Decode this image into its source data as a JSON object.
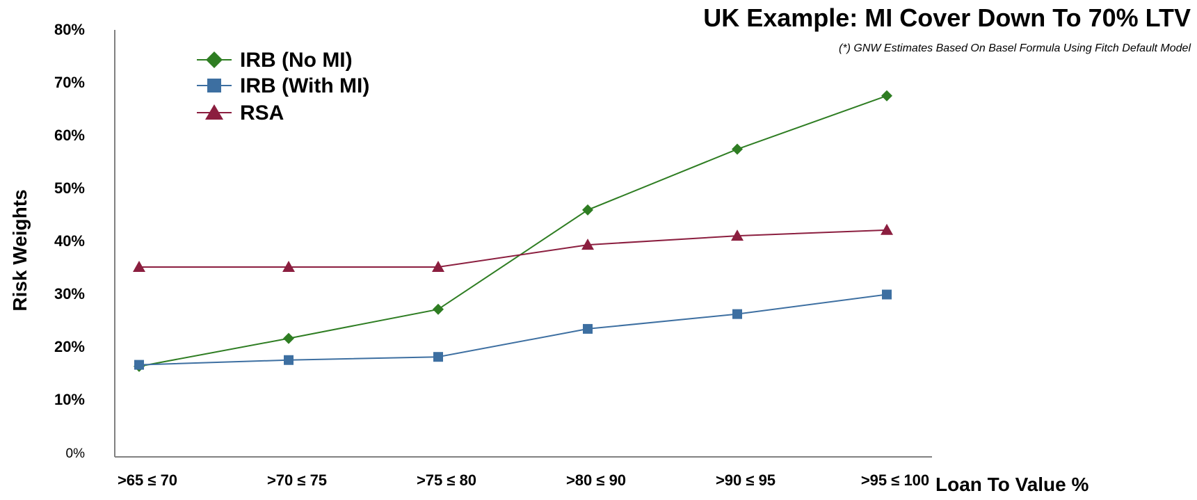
{
  "chart_data": {
    "type": "line",
    "title": "UK Example: MI Cover Down To 70% LTV",
    "subtitle": "(*) GNW Estimates Based On Basel Formula Using Fitch Default Model",
    "xlabel": "Loan To Value %",
    "ylabel": "Risk Weights",
    "categories": [
      ">65 ≤ 70",
      ">70 ≤ 75",
      ">75 ≤ 80",
      ">80 ≤ 90",
      ">90 ≤ 95",
      ">95 ≤ 100"
    ],
    "yticks": [
      "0%",
      "10%",
      "20%",
      "30%",
      "40%",
      "50%",
      "60%",
      "70%",
      "80%"
    ],
    "ylim": [
      0,
      80
    ],
    "grid": false,
    "legend_position": "top-left",
    "series": [
      {
        "name": "IRB (No MI)",
        "color": "#2e7d22",
        "marker": "diamond",
        "values": [
          16.2,
          21.5,
          27.0,
          45.8,
          57.3,
          67.4
        ]
      },
      {
        "name": "IRB (With MI)",
        "color": "#3d6fa1",
        "marker": "square",
        "values": [
          16.5,
          17.4,
          18.0,
          23.3,
          26.1,
          29.8
        ]
      },
      {
        "name": "RSA",
        "color": "#8b1e3f",
        "marker": "triangle",
        "values": [
          35.0,
          35.0,
          35.0,
          39.2,
          40.9,
          42.0
        ]
      }
    ]
  }
}
